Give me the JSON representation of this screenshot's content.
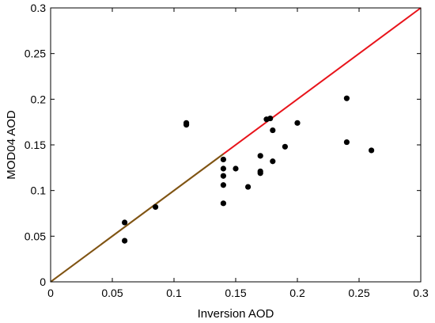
{
  "chart_data": {
    "type": "scatter",
    "title": "",
    "xlabel": "Inversion AOD",
    "ylabel": "MOD04 AOD",
    "xlim": [
      0,
      0.3
    ],
    "ylim": [
      0,
      0.3
    ],
    "xticks": [
      "0",
      "0.05",
      "0.1",
      "0.15",
      "0.2",
      "0.25",
      "0.3"
    ],
    "yticks": [
      "0",
      "0.05",
      "0.1",
      "0.15",
      "0.2",
      "0.25",
      "0.3"
    ],
    "grid": false,
    "legend": "none",
    "reference_line": {
      "x": [
        0,
        0.3
      ],
      "y": [
        0,
        0.3
      ],
      "color": "#e8141b",
      "lower_segment_color": "#7a5a14",
      "lower_segment_end": 0.14
    },
    "marker_color": "#000000",
    "points": [
      {
        "x": 0.06,
        "y": 0.065
      },
      {
        "x": 0.06,
        "y": 0.045
      },
      {
        "x": 0.085,
        "y": 0.082
      },
      {
        "x": 0.11,
        "y": 0.174
      },
      {
        "x": 0.11,
        "y": 0.172
      },
      {
        "x": 0.14,
        "y": 0.134
      },
      {
        "x": 0.14,
        "y": 0.124
      },
      {
        "x": 0.14,
        "y": 0.116
      },
      {
        "x": 0.14,
        "y": 0.106
      },
      {
        "x": 0.14,
        "y": 0.086
      },
      {
        "x": 0.15,
        "y": 0.124
      },
      {
        "x": 0.16,
        "y": 0.104
      },
      {
        "x": 0.17,
        "y": 0.138
      },
      {
        "x": 0.17,
        "y": 0.121
      },
      {
        "x": 0.17,
        "y": 0.119
      },
      {
        "x": 0.175,
        "y": 0.178
      },
      {
        "x": 0.178,
        "y": 0.179
      },
      {
        "x": 0.18,
        "y": 0.166
      },
      {
        "x": 0.18,
        "y": 0.132
      },
      {
        "x": 0.19,
        "y": 0.148
      },
      {
        "x": 0.2,
        "y": 0.174
      },
      {
        "x": 0.24,
        "y": 0.201
      },
      {
        "x": 0.24,
        "y": 0.153
      },
      {
        "x": 0.26,
        "y": 0.144
      }
    ]
  }
}
